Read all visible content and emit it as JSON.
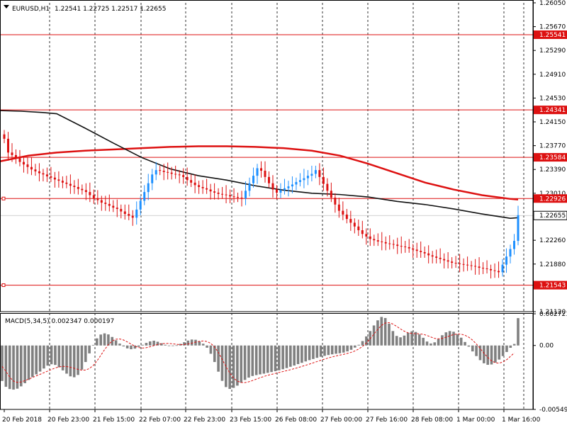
{
  "header": {
    "symbol_label": "EURUSD,H1",
    "ohlc": "1.22541 1.22725 1.22517 1.22655"
  },
  "chart_data": {
    "type": "candlestick",
    "price_axis": {
      "min": 1.2112,
      "max": 1.2605,
      "ticks": [
        "1.26050",
        "1.25670",
        "1.25290",
        "1.24910",
        "1.24530",
        "1.24150",
        "1.23770",
        "1.23390",
        "1.23010",
        "1.22260",
        "1.21880",
        "1.21120"
      ]
    },
    "horizontal_lines": [
      1.25541,
      1.24341,
      1.23584,
      1.22926,
      1.21543
    ],
    "horizontal_line_labels": [
      "1.25541",
      "1.24341",
      "1.23584",
      "1.22926",
      "1.21543"
    ],
    "current_price": 1.22655,
    "current_price_label": "1.22655",
    "time_labels": [
      "20 Feb 2018",
      "20 Feb 23:00",
      "21 Feb 15:00",
      "22 Feb 07:00",
      "22 Feb 23:00",
      "23 Feb 15:00",
      "26 Feb 08:00",
      "27 Feb 00:00",
      "27 Feb 16:00",
      "28 Feb 08:00",
      "1 Mar 00:00",
      "1 Mar 16:00"
    ],
    "candles_close": [
      1.2388,
      1.2366,
      1.2362,
      1.2357,
      1.2351,
      1.2347,
      1.2343,
      1.2339,
      1.2336,
      1.2333,
      1.2331,
      1.2328,
      1.2326,
      1.2323,
      1.2321,
      1.2318,
      1.2316,
      1.2313,
      1.2311,
      1.2308,
      1.2306,
      1.2303,
      1.2298,
      1.2293,
      1.229,
      1.2286,
      1.2284,
      1.2281,
      1.2278,
      1.2276,
      1.2272,
      1.2268,
      1.2265,
      1.2262,
      1.2275,
      1.2289,
      1.2303,
      1.2317,
      1.2331,
      1.2338,
      1.2337,
      1.2335,
      1.2334,
      1.2332,
      1.2331,
      1.233,
      1.2327,
      1.2322,
      1.2318,
      1.2314,
      1.2311,
      1.2309,
      1.2307,
      1.2304,
      1.2302,
      1.23,
      1.2299,
      1.2298,
      1.2296,
      1.2295,
      1.2294,
      1.2293,
      1.2305,
      1.2317,
      1.2329,
      1.2341,
      1.2337,
      1.2327,
      1.2317,
      1.2307,
      1.2302,
      1.2306,
      1.2309,
      1.2312,
      1.2315,
      1.2319,
      1.2322,
      1.2325,
      1.2329,
      1.2332,
      1.2338,
      1.2327,
      1.2316,
      1.2305,
      1.2294,
      1.2283,
      1.2273,
      1.2267,
      1.226,
      1.2254,
      1.2248,
      1.2242,
      1.2236,
      1.2232,
      1.2228,
      1.2226,
      1.2224,
      1.2223,
      1.2221,
      1.222,
      1.2219,
      1.2217,
      1.2216,
      1.2215,
      1.2213,
      1.2211,
      1.2209,
      1.2207,
      1.2205,
      1.2202,
      1.22,
      1.2198,
      1.2196,
      1.2194,
      1.2192,
      1.219,
      1.2189,
      1.2188,
      1.2187,
      1.2186,
      1.2185,
      1.2184,
      1.2182,
      1.2181,
      1.218,
      1.2178,
      1.2177,
      1.2175,
      1.2187,
      1.22,
      1.2212,
      1.2225,
      1.2266
    ],
    "series": [
      {
        "name": "",
        "color": "#dd1111",
        "x": [
          0,
          40,
          80,
          120,
          160,
          200,
          240,
          280,
          320,
          360,
          400,
          440,
          480,
          520,
          560,
          600,
          640,
          680,
          720,
          731
        ],
        "y": [
          1.2352,
          1.2361,
          1.2366,
          1.2369,
          1.2371,
          1.2373,
          1.2375,
          1.2376,
          1.2376,
          1.2375,
          1.2373,
          1.2369,
          1.2361,
          1.2348,
          1.2333,
          1.2318,
          1.2307,
          1.2298,
          1.2292,
          1.2291
        ]
      },
      {
        "name": "",
        "color": "#111111",
        "x": [
          0,
          30,
          60,
          80,
          120,
          160,
          200,
          240,
          280,
          320,
          360,
          400,
          440,
          480,
          520,
          560,
          600,
          640,
          680,
          720,
          731
        ],
        "y": [
          1.2433,
          1.2432,
          1.243,
          1.2428,
          1.2405,
          1.2381,
          1.2358,
          1.234,
          1.2329,
          1.2322,
          1.2313,
          1.2306,
          1.2301,
          1.2299,
          1.2295,
          1.2288,
          1.2283,
          1.2276,
          1.2268,
          1.2261,
          1.2262
        ]
      }
    ],
    "macd": {
      "label": "MACD(5,34,5) 0.002347 0.000197",
      "axis_labels": [
        "0.002721",
        "0.00",
        "-0.005491"
      ],
      "min": -0.005491,
      "max": 0.002721,
      "histogram": [
        -0.00305,
        -0.00355,
        -0.00374,
        -0.00379,
        -0.00371,
        -0.00351,
        -0.00324,
        -0.00296,
        -0.00271,
        -0.00248,
        -0.00224,
        -0.00198,
        -0.00173,
        -0.00161,
        -0.00167,
        -0.00187,
        -0.00214,
        -0.00242,
        -0.00265,
        -0.00273,
        -0.00253,
        -0.00207,
        -0.00142,
        -0.00068,
        5e-05,
        0.00061,
        0.00094,
        0.00104,
        0.00095,
        0.00073,
        0.00045,
        0.00016,
        -8e-05,
        -0.00025,
        -0.00032,
        -0.00027,
        -0.00012,
        6e-05,
        0.00022,
        0.00035,
        0.00041,
        0.00032,
        0.00019,
        6e-05,
        -3e-05,
        -4e-05,
        2e-05,
        0.00014,
        0.00028,
        0.00042,
        0.00051,
        0.00049,
        0.00036,
        0.00015,
        -0.00019,
        -0.00071,
        -0.00142,
        -0.00225,
        -0.00304,
        -0.00357,
        -0.00373,
        -0.00364,
        -0.00345,
        -0.0032,
        -0.00296,
        -0.00276,
        -0.00262,
        -0.00254,
        -0.00248,
        -0.00242,
        -0.00235,
        -0.00228,
        -0.00221,
        -0.00213,
        -0.00204,
        -0.00194,
        -0.00183,
        -0.00172,
        -0.0016,
        -0.00149,
        -0.00137,
        -0.00126,
        -0.00116,
        -0.00106,
        -0.00097,
        -0.00089,
        -0.00082,
        -0.00076,
        -0.00071,
        -0.00067,
        -0.00061,
        -0.00051,
        -0.00037,
        -0.00018,
        6e-05,
        0.00038,
        0.00078,
        0.00124,
        0.00172,
        0.00216,
        0.00245,
        0.00236,
        0.00187,
        0.00124,
        0.00082,
        0.0007,
        0.00085,
        0.00109,
        0.00122,
        0.00116,
        0.00095,
        0.00066,
        0.00034,
        0.00017,
        0.00027,
        0.00055,
        0.00088,
        0.00113,
        0.00124,
        0.00118,
        0.00097,
        0.00067,
        0.0003,
        -0.0001,
        -0.00051,
        -0.00091,
        -0.00126,
        -0.00153,
        -0.00166,
        -0.00163,
        -0.00147,
        -0.00121,
        -0.00091,
        -0.00056,
        -0.0002,
        0.00013,
        0.00235
      ],
      "signal": [
        -0.00181,
        -0.00222,
        -0.00272,
        -0.00306,
        -0.00317,
        -0.00313,
        -0.00302,
        -0.00289,
        -0.00275,
        -0.00261,
        -0.00248,
        -0.00234,
        -0.0022,
        -0.00206,
        -0.00193,
        -0.00184,
        -0.00179,
        -0.00181,
        -0.00187,
        -0.00196,
        -0.00205,
        -0.00212,
        -0.00211,
        -0.00198,
        -0.00172,
        -0.00133,
        -0.00085,
        -0.00036,
        7e-05,
        0.00038,
        0.00054,
        0.00056,
        0.00047,
        0.00031,
        0.00012,
        -6e-05,
        -0.00018,
        -0.00022,
        -0.00019,
        -0.00011,
        -1e-05,
        8e-05,
        0.00015,
        0.00018,
        0.00017,
        0.00014,
        0.0001,
        7e-05,
        8e-05,
        0.00013,
        0.0002,
        0.00029,
        0.00036,
        0.00039,
        0.00034,
        0.00018,
        -0.00013,
        -0.0006,
        -0.00119,
        -0.00181,
        -0.00237,
        -0.00279,
        -0.00306,
        -0.00318,
        -0.00319,
        -0.00312,
        -0.00301,
        -0.00289,
        -0.00277,
        -0.00266,
        -0.00256,
        -0.00248,
        -0.0024,
        -0.00232,
        -0.00224,
        -0.00216,
        -0.00208,
        -0.00199,
        -0.0019,
        -0.0018,
        -0.0017,
        -0.0016,
        -0.00149,
        -0.00138,
        -0.00127,
        -0.00117,
        -0.00107,
        -0.00098,
        -0.0009,
        -0.00083,
        -0.00076,
        -0.00068,
        -0.00059,
        -0.00047,
        -0.0003,
        -8e-05,
        0.00021,
        0.00057,
        0.00098,
        0.00138,
        0.00173,
        0.00193,
        0.00196,
        0.00184,
        0.00164,
        0.00142,
        0.00123,
        0.00109,
        0.00103,
        0.00101,
        0.001,
        0.00096,
        0.00086,
        0.00073,
        0.00061,
        0.00057,
        0.00061,
        0.00071,
        0.00083,
        0.00094,
        0.00099,
        0.00097,
        0.00088,
        0.00071,
        0.00046,
        0.00013,
        -0.00025,
        -0.00066,
        -0.00103,
        -0.00132,
        -0.00149,
        -0.00152,
        -0.00142,
        -0.00122,
        -0.00093,
        -0.00064
      ],
      "signal_color": "#dd1111",
      "hist_color": "#808080"
    },
    "colors": {
      "bull": "#1e90ff",
      "bear": "#dd1111",
      "hline": "#dd1111",
      "grid": "#000000",
      "axis_bg": "#ffffff",
      "axis_label_bg": "#dd1111"
    }
  }
}
